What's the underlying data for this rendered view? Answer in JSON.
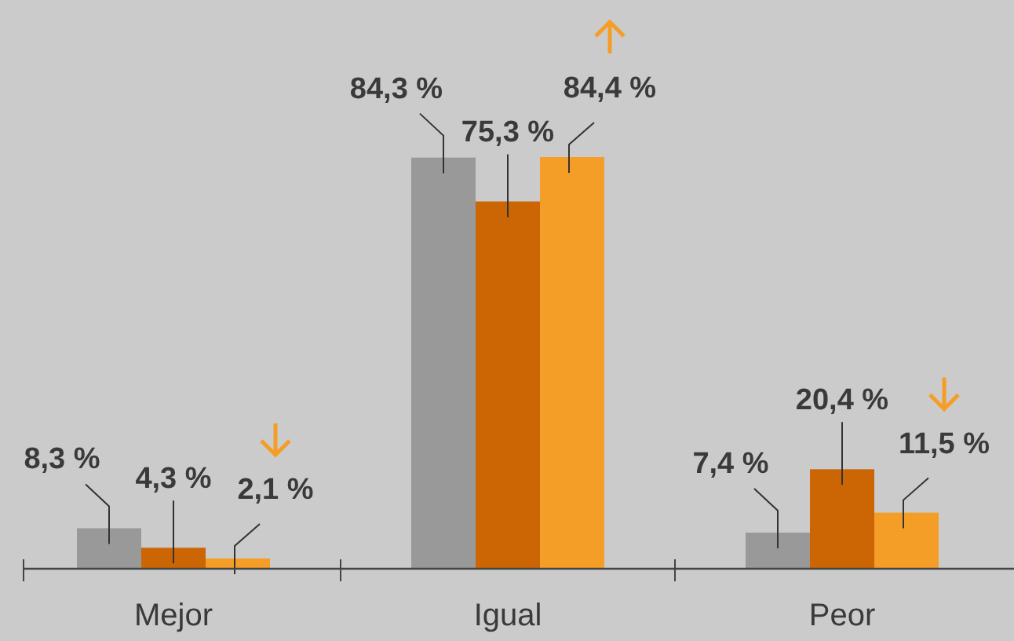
{
  "chart_data": {
    "type": "bar",
    "categories": [
      "Mejor",
      "Igual",
      "Peor"
    ],
    "series": [
      {
        "color": "#999999",
        "values": [
          8.3,
          84.3,
          7.4
        ],
        "value_labels": [
          "8,3 %",
          "84,3 %",
          "7,4 %"
        ]
      },
      {
        "color": "#cc6604",
        "values": [
          4.3,
          75.3,
          20.4
        ],
        "value_labels": [
          "4,3 %",
          "75,3 %",
          "20,4 %"
        ]
      },
      {
        "color": "#f59e27",
        "values": [
          2.1,
          84.4,
          11.5
        ],
        "value_labels": [
          "2,1 %",
          "84,4 %",
          "11,5 %"
        ]
      }
    ],
    "ylim": [
      0,
      84.4
    ],
    "tick_labels": "x"
  }
}
